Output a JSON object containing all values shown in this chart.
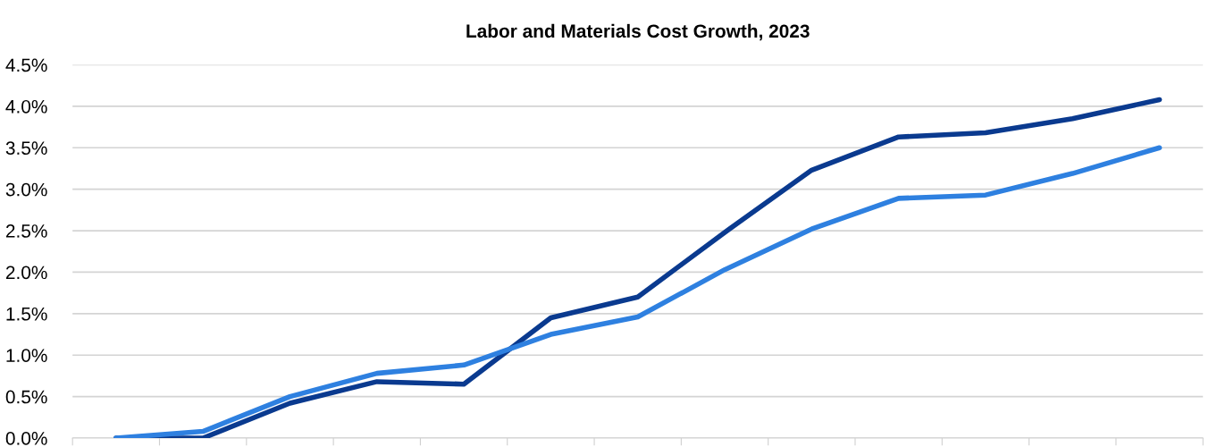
{
  "chart_data": {
    "type": "line",
    "title": "Labor and Materials Cost Growth, 2023",
    "categories": [
      null,
      null,
      null,
      null,
      null,
      null,
      null,
      null,
      null,
      null,
      null,
      null,
      null
    ],
    "series": [
      {
        "color": "#0a3a8f",
        "values": [
          0.0,
          0.0,
          0.42,
          0.68,
          0.65,
          1.45,
          1.7,
          2.48,
          3.23,
          3.63,
          3.68,
          3.85,
          4.08
        ]
      },
      {
        "color": "#2e80e0",
        "values": [
          0.0,
          0.08,
          0.5,
          0.78,
          0.88,
          1.25,
          1.46,
          2.03,
          2.52,
          2.89,
          2.93,
          3.19,
          3.5
        ]
      }
    ],
    "ylim": [
      0,
      4.5
    ],
    "yticks": [
      {
        "value": 0,
        "label": "0.0%"
      },
      {
        "value": 0.5,
        "label": "0.5%"
      },
      {
        "value": 1,
        "label": "1.0%"
      },
      {
        "value": 1.5,
        "label": "1.5%"
      },
      {
        "value": 2,
        "label": "2.0%"
      },
      {
        "value": 2.5,
        "label": "2.5%"
      },
      {
        "value": 3,
        "label": "3.0%"
      },
      {
        "value": 3.5,
        "label": "3.5%"
      },
      {
        "value": 4,
        "label": "4.0%"
      },
      {
        "value": 4.5,
        "label": "4.5%"
      }
    ],
    "grid": "y",
    "marker": "none",
    "line_style": "solid"
  }
}
